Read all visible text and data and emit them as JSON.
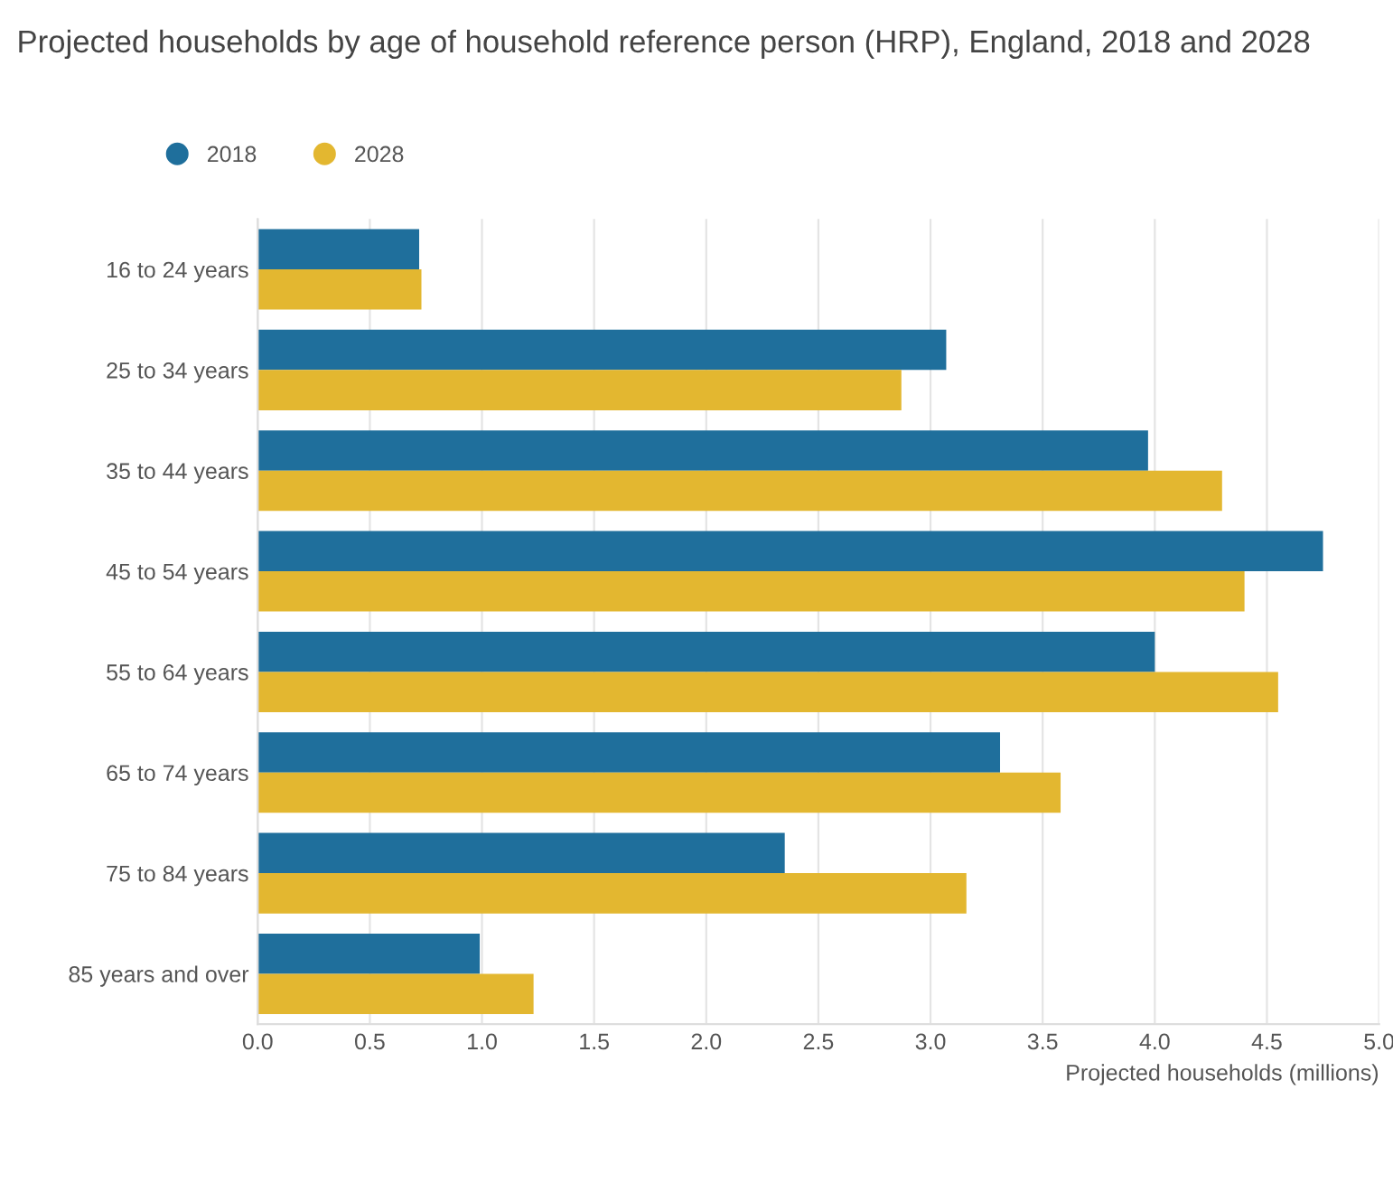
{
  "chart_data": {
    "type": "bar",
    "orientation": "horizontal",
    "title": "Projected households by age of household reference person (HRP), England, 2018 and 2028",
    "xlabel": "Projected households (millions)",
    "categories": [
      "16 to 24 years",
      "25 to 34 years",
      "35 to 44 years",
      "45 to 54 years",
      "55 to 64 years",
      "65 to 74 years",
      "75 to 84 years",
      "85 years and over"
    ],
    "series": [
      {
        "name": "2018",
        "color": "#1f6f9c",
        "values": [
          0.72,
          3.07,
          3.97,
          4.75,
          4.0,
          3.31,
          2.35,
          0.99
        ]
      },
      {
        "name": "2028",
        "color": "#e3b730",
        "values": [
          0.73,
          2.87,
          4.3,
          4.4,
          4.55,
          3.58,
          3.16,
          1.23
        ]
      }
    ],
    "xlim": [
      0,
      5
    ],
    "xticks": [
      {
        "value": 0,
        "label": "0.0"
      },
      {
        "value": 0.5,
        "label": "0.5"
      },
      {
        "value": 1,
        "label": "1.0"
      },
      {
        "value": 1.5,
        "label": "1.5"
      },
      {
        "value": 2,
        "label": "2.0"
      },
      {
        "value": 2.5,
        "label": "2.5"
      },
      {
        "value": 3,
        "label": "3.0"
      },
      {
        "value": 3.5,
        "label": "3.5"
      },
      {
        "value": 4,
        "label": "4.0"
      },
      {
        "value": 4.5,
        "label": "4.5"
      },
      {
        "value": 5,
        "label": "5.0"
      }
    ],
    "grid": "x",
    "legend": "top left"
  }
}
